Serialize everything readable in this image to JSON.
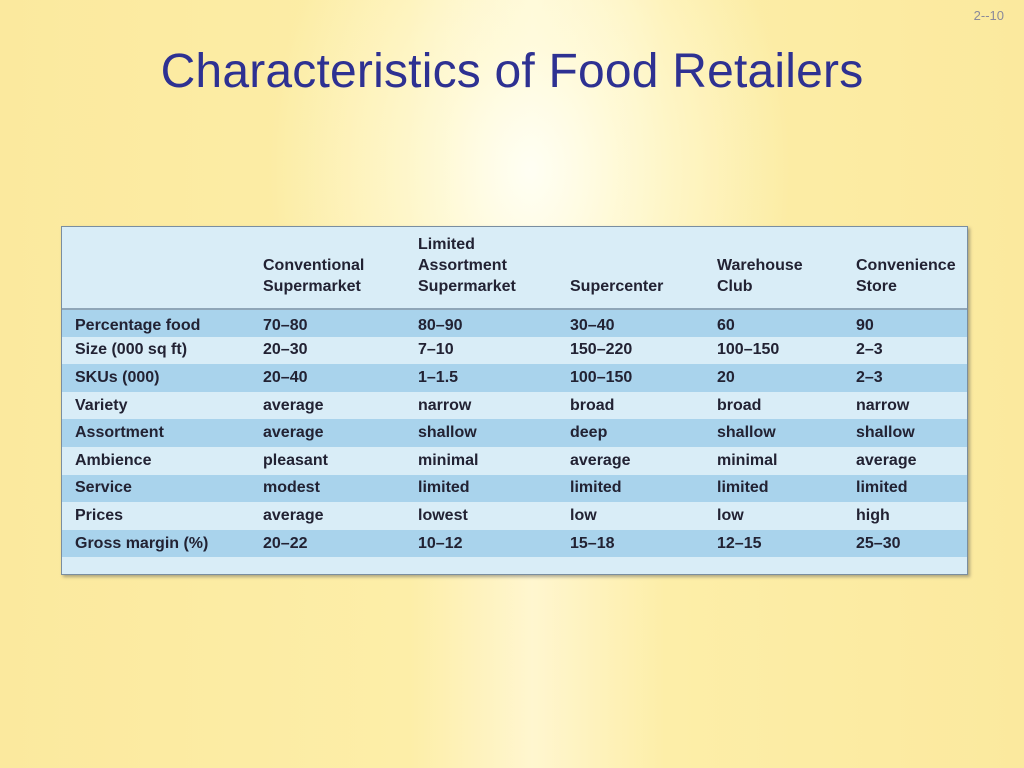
{
  "slide": {
    "number": "2--10",
    "title": "Characteristics of Food Retailers"
  },
  "table": {
    "headers": [
      "",
      "Conventional\nSupermarket",
      "Limited\nAssortment\nSupermarket",
      "Supercenter",
      "Warehouse\nClub",
      "Convenience\nStore"
    ],
    "rows": [
      {
        "label": "Percentage food",
        "values": [
          "70–80",
          "80–90",
          "30–40",
          "60",
          "90"
        ]
      },
      {
        "label": "Size (000 sq ft)",
        "values": [
          "20–30",
          "7–10",
          "150–220",
          "100–150",
          "2–3"
        ]
      },
      {
        "label": "SKUs (000)",
        "values": [
          "20–40",
          "1–1.5",
          "100–150",
          "20",
          "2–3"
        ]
      },
      {
        "label": "Variety",
        "values": [
          "average",
          "narrow",
          "broad",
          "broad",
          "narrow"
        ]
      },
      {
        "label": "Assortment",
        "values": [
          "average",
          "shallow",
          "deep",
          "shallow",
          "shallow"
        ]
      },
      {
        "label": "Ambience",
        "values": [
          "pleasant",
          "minimal",
          "average",
          "minimal",
          "average"
        ]
      },
      {
        "label": "Service",
        "values": [
          "modest",
          "limited",
          "limited",
          "limited",
          "limited"
        ]
      },
      {
        "label": "Prices",
        "values": [
          "average",
          "lowest",
          "low",
          "low",
          "high"
        ]
      },
      {
        "label": "Gross margin (%)",
        "values": [
          "20–22",
          "10–12",
          "15–18",
          "12–15",
          "25–30"
        ]
      }
    ]
  }
}
